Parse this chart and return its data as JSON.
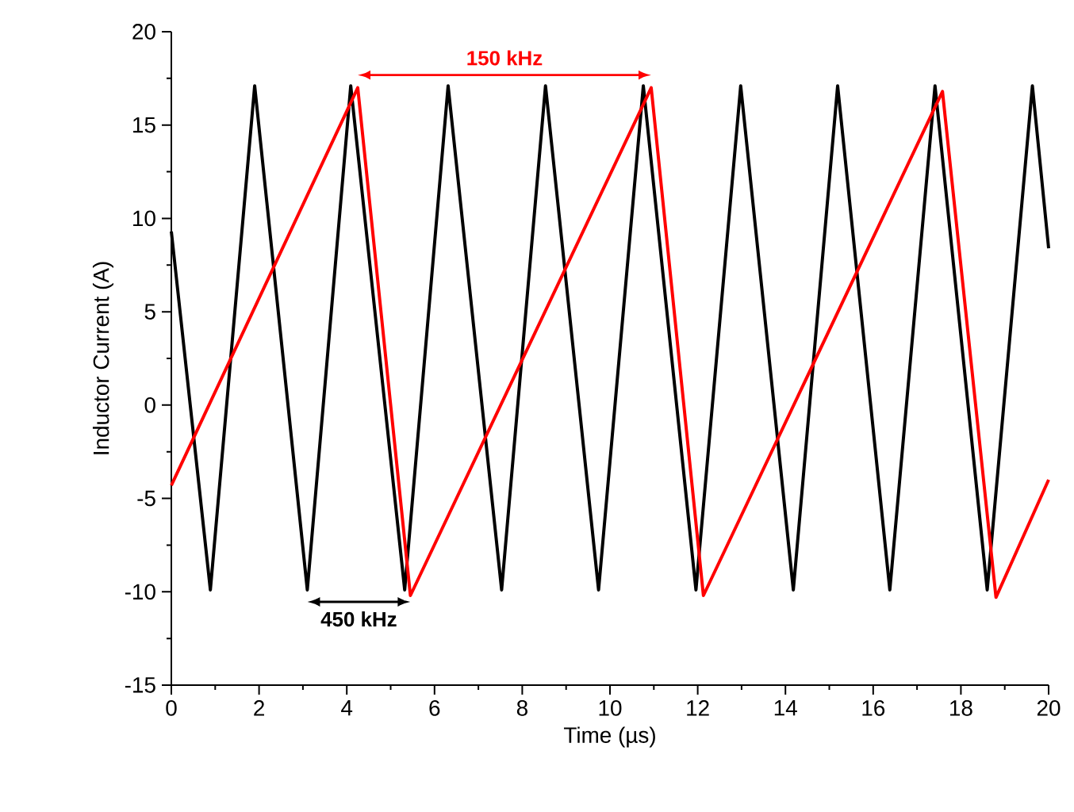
{
  "chart_data": {
    "type": "line",
    "xlabel": "Time (µs)",
    "ylabel": "Inductor Current (A)",
    "series": [
      {
        "color": "#000000",
        "x": [
          0,
          0.89,
          1.9,
          3.1,
          4.09,
          5.32,
          6.31,
          7.53,
          8.53,
          9.74,
          10.76,
          11.96,
          12.98,
          14.18,
          15.19,
          16.38,
          17.41,
          18.6,
          19.63,
          20
        ],
        "values": [
          9.3,
          -9.9,
          17.1,
          -9.9,
          17.1,
          -9.9,
          17.1,
          -9.9,
          17.1,
          -9.9,
          17.1,
          -9.9,
          17.1,
          -9.9,
          17.1,
          -9.9,
          17.1,
          -9.9,
          17.1,
          8.4
        ]
      },
      {
        "color": "#ff0000",
        "x": [
          0,
          4.25,
          5.45,
          10.94,
          12.13,
          17.58,
          18.8,
          20
        ],
        "values": [
          -4.3,
          17.0,
          -10.2,
          17.0,
          -10.2,
          16.8,
          -10.3,
          -4.0
        ]
      }
    ],
    "annotations": [
      "**150 kHz**",
      "**450 kHz**"
    ],
    "xlim": [
      0,
      20
    ],
    "xticks": [
      0,
      2,
      4,
      6,
      8,
      10,
      12,
      14,
      16,
      18,
      20
    ],
    "ylim": [
      -15,
      20
    ],
    "yticks": [
      -15,
      -10,
      -5,
      0,
      5,
      10,
      15,
      20
    ],
    "grid": false,
    "marker": "none",
    "line_style": "solid"
  }
}
